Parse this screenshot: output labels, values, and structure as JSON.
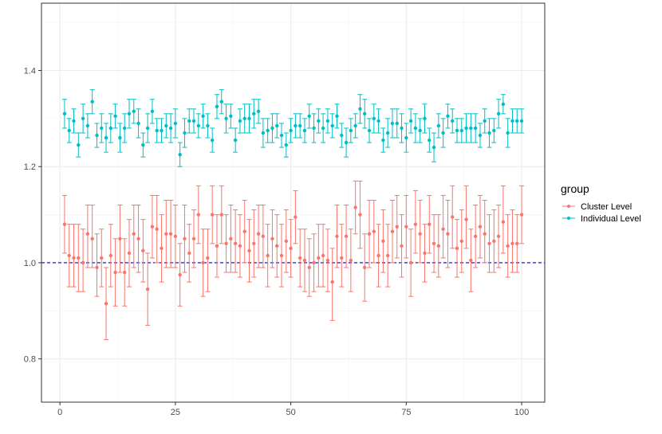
{
  "chart_data": {
    "type": "scatter",
    "title": "",
    "xlabel": "",
    "ylabel": "",
    "xlim": [
      -4.0,
      105.0
    ],
    "ylim": [
      0.71,
      1.54
    ],
    "x_ticks": [
      0,
      25,
      50,
      75,
      100
    ],
    "y_ticks": [
      0.8,
      1.0,
      1.2,
      1.4
    ],
    "x_tick_labels": [
      "0",
      "25",
      "50",
      "75",
      "100"
    ],
    "y_tick_labels": [
      "0.8",
      "1.0",
      "1.2",
      "1.4"
    ],
    "grid": true,
    "reference_line": {
      "y": 1.0,
      "style": "dashed",
      "color": "#0000cd"
    },
    "legend": {
      "title": "group",
      "placement": "right"
    },
    "series": [
      {
        "name": "Cluster Level",
        "color": "#f8766d",
        "x": [
          1,
          2,
          3,
          4,
          5,
          6,
          7,
          8,
          9,
          10,
          11,
          12,
          13,
          14,
          15,
          16,
          17,
          18,
          19,
          20,
          21,
          22,
          23,
          24,
          25,
          26,
          27,
          28,
          29,
          30,
          31,
          32,
          33,
          34,
          35,
          36,
          37,
          38,
          39,
          40,
          41,
          42,
          43,
          44,
          45,
          46,
          47,
          48,
          49,
          50,
          51,
          52,
          53,
          54,
          55,
          56,
          57,
          58,
          59,
          60,
          61,
          62,
          63,
          64,
          65,
          66,
          67,
          68,
          69,
          70,
          71,
          72,
          73,
          74,
          75,
          76,
          77,
          78,
          79,
          80,
          81,
          82,
          83,
          84,
          85,
          86,
          87,
          88,
          89,
          90,
          91,
          92,
          93,
          94,
          95,
          96,
          97,
          98,
          99,
          100
        ],
        "y": [
          1.08,
          1.015,
          1.01,
          1.01,
          1.0,
          1.06,
          1.05,
          0.99,
          1.01,
          0.915,
          1.015,
          0.98,
          1.05,
          0.98,
          1.02,
          1.06,
          1.05,
          1.025,
          0.945,
          1.075,
          1.07,
          1.03,
          1.06,
          1.06,
          1.055,
          0.975,
          1.05,
          1.02,
          1.05,
          1.1,
          1.0,
          1.01,
          1.1,
          1.035,
          1.1,
          1.04,
          1.05,
          1.04,
          1.035,
          1.065,
          1.025,
          1.04,
          1.06,
          1.055,
          1.015,
          1.05,
          1.035,
          1.015,
          1.045,
          1.03,
          1.095,
          1.01,
          1.005,
          0.99,
          1.0,
          1.01,
          1.015,
          1.005,
          0.96,
          1.055,
          1.01,
          1.055,
          1.005,
          1.115,
          1.1,
          0.99,
          1.06,
          1.065,
          1.015,
          1.045,
          1.015,
          1.065,
          1.075,
          1.035,
          1.075,
          1.0,
          1.08,
          1.06,
          1.02,
          1.08,
          1.04,
          1.035,
          1.07,
          1.06,
          1.095,
          1.03,
          1.045,
          1.09,
          1.005,
          1.055,
          1.075,
          1.06,
          1.04,
          1.045,
          1.055,
          1.085,
          1.035,
          1.04,
          1.04,
          1.1
        ],
        "ymin": [
          1.02,
          0.95,
          0.95,
          0.94,
          0.94,
          0.99,
          0.99,
          0.93,
          0.95,
          0.84,
          0.95,
          0.91,
          0.98,
          0.91,
          0.95,
          0.99,
          0.98,
          0.96,
          0.87,
          1.01,
          1.0,
          0.96,
          0.99,
          0.99,
          0.99,
          0.91,
          0.98,
          0.96,
          0.99,
          1.04,
          0.93,
          0.94,
          1.04,
          0.97,
          1.04,
          0.98,
          0.98,
          0.98,
          0.97,
          1.0,
          0.96,
          0.97,
          0.99,
          0.99,
          0.95,
          0.99,
          0.97,
          0.95,
          0.98,
          0.97,
          1.04,
          0.95,
          0.94,
          0.93,
          0.94,
          0.95,
          0.95,
          0.94,
          0.88,
          0.99,
          0.95,
          0.99,
          0.94,
          1.06,
          1.03,
          0.92,
          0.99,
          1.0,
          0.95,
          0.98,
          0.95,
          1.0,
          1.01,
          0.97,
          1.01,
          0.93,
          1.02,
          1.0,
          0.96,
          1.02,
          0.98,
          0.97,
          1.01,
          0.99,
          1.03,
          0.97,
          0.98,
          1.03,
          0.94,
          0.99,
          1.01,
          1.0,
          0.98,
          0.98,
          0.99,
          1.02,
          0.97,
          0.98,
          0.98,
          1.04
        ],
        "ymax": [
          1.14,
          1.08,
          1.08,
          1.08,
          1.07,
          1.12,
          1.12,
          1.06,
          1.07,
          0.99,
          1.08,
          1.05,
          1.12,
          1.05,
          1.09,
          1.12,
          1.12,
          1.09,
          1.02,
          1.14,
          1.14,
          1.1,
          1.13,
          1.13,
          1.12,
          1.04,
          1.12,
          1.08,
          1.11,
          1.16,
          1.07,
          1.07,
          1.16,
          1.1,
          1.16,
          1.1,
          1.12,
          1.11,
          1.1,
          1.13,
          1.09,
          1.11,
          1.12,
          1.12,
          1.08,
          1.11,
          1.1,
          1.08,
          1.11,
          1.09,
          1.15,
          1.07,
          1.07,
          1.05,
          1.06,
          1.08,
          1.08,
          1.07,
          1.03,
          1.12,
          1.08,
          1.12,
          1.07,
          1.17,
          1.17,
          1.06,
          1.13,
          1.13,
          1.08,
          1.11,
          1.08,
          1.13,
          1.14,
          1.1,
          1.14,
          1.07,
          1.15,
          1.13,
          1.08,
          1.14,
          1.1,
          1.1,
          1.14,
          1.13,
          1.16,
          1.09,
          1.11,
          1.16,
          1.07,
          1.12,
          1.14,
          1.13,
          1.1,
          1.11,
          1.12,
          1.16,
          1.1,
          1.11,
          1.1,
          1.16
        ]
      },
      {
        "name": "Individual Level",
        "color": "#00bfc4",
        "x": [
          1,
          2,
          3,
          4,
          5,
          6,
          7,
          8,
          9,
          10,
          11,
          12,
          13,
          14,
          15,
          16,
          17,
          18,
          19,
          20,
          21,
          22,
          23,
          24,
          25,
          26,
          27,
          28,
          29,
          30,
          31,
          32,
          33,
          34,
          35,
          36,
          37,
          38,
          39,
          40,
          41,
          42,
          43,
          44,
          45,
          46,
          47,
          48,
          49,
          50,
          51,
          52,
          53,
          54,
          55,
          56,
          57,
          58,
          59,
          60,
          61,
          62,
          63,
          64,
          65,
          66,
          67,
          68,
          69,
          70,
          71,
          72,
          73,
          74,
          75,
          76,
          77,
          78,
          79,
          80,
          81,
          82,
          83,
          84,
          85,
          86,
          87,
          88,
          89,
          90,
          91,
          92,
          93,
          94,
          95,
          96,
          97,
          98,
          99,
          100
        ],
        "y": [
          1.31,
          1.275,
          1.295,
          1.245,
          1.3,
          1.285,
          1.335,
          1.265,
          1.28,
          1.26,
          1.28,
          1.305,
          1.26,
          1.28,
          1.31,
          1.315,
          1.29,
          1.245,
          1.28,
          1.315,
          1.275,
          1.275,
          1.285,
          1.28,
          1.29,
          1.225,
          1.27,
          1.295,
          1.295,
          1.285,
          1.305,
          1.285,
          1.255,
          1.325,
          1.335,
          1.3,
          1.305,
          1.255,
          1.295,
          1.3,
          1.3,
          1.31,
          1.315,
          1.27,
          1.275,
          1.28,
          1.285,
          1.265,
          1.245,
          1.275,
          1.285,
          1.285,
          1.275,
          1.305,
          1.28,
          1.295,
          1.28,
          1.295,
          1.285,
          1.305,
          1.265,
          1.25,
          1.275,
          1.285,
          1.32,
          1.31,
          1.275,
          1.3,
          1.295,
          1.255,
          1.27,
          1.29,
          1.29,
          1.28,
          1.26,
          1.295,
          1.28,
          1.275,
          1.3,
          1.255,
          1.24,
          1.285,
          1.27,
          1.305,
          1.295,
          1.275,
          1.275,
          1.28,
          1.28,
          1.28,
          1.265,
          1.295,
          1.27,
          1.275,
          1.31,
          1.33,
          1.27,
          1.295,
          1.295,
          1.295
        ],
        "ymin": [
          1.28,
          1.25,
          1.27,
          1.22,
          1.27,
          1.26,
          1.31,
          1.24,
          1.25,
          1.23,
          1.25,
          1.28,
          1.23,
          1.25,
          1.28,
          1.29,
          1.26,
          1.22,
          1.25,
          1.29,
          1.25,
          1.25,
          1.26,
          1.25,
          1.26,
          1.2,
          1.24,
          1.27,
          1.27,
          1.26,
          1.28,
          1.26,
          1.23,
          1.3,
          1.31,
          1.27,
          1.28,
          1.23,
          1.27,
          1.27,
          1.27,
          1.28,
          1.29,
          1.24,
          1.25,
          1.25,
          1.26,
          1.24,
          1.22,
          1.25,
          1.26,
          1.26,
          1.25,
          1.28,
          1.25,
          1.27,
          1.25,
          1.27,
          1.26,
          1.28,
          1.24,
          1.22,
          1.25,
          1.26,
          1.29,
          1.28,
          1.25,
          1.27,
          1.27,
          1.23,
          1.24,
          1.26,
          1.26,
          1.25,
          1.23,
          1.27,
          1.25,
          1.25,
          1.27,
          1.23,
          1.21,
          1.26,
          1.24,
          1.28,
          1.27,
          1.25,
          1.25,
          1.25,
          1.25,
          1.25,
          1.24,
          1.27,
          1.24,
          1.25,
          1.28,
          1.31,
          1.24,
          1.27,
          1.27,
          1.27
        ],
        "ymax": [
          1.34,
          1.3,
          1.32,
          1.27,
          1.33,
          1.31,
          1.36,
          1.29,
          1.31,
          1.29,
          1.31,
          1.33,
          1.29,
          1.31,
          1.34,
          1.34,
          1.32,
          1.27,
          1.31,
          1.34,
          1.3,
          1.3,
          1.31,
          1.31,
          1.32,
          1.25,
          1.3,
          1.32,
          1.32,
          1.31,
          1.33,
          1.31,
          1.28,
          1.35,
          1.36,
          1.33,
          1.33,
          1.28,
          1.32,
          1.33,
          1.33,
          1.34,
          1.34,
          1.3,
          1.3,
          1.31,
          1.31,
          1.29,
          1.27,
          1.3,
          1.31,
          1.31,
          1.3,
          1.33,
          1.31,
          1.32,
          1.31,
          1.32,
          1.31,
          1.33,
          1.29,
          1.28,
          1.3,
          1.31,
          1.35,
          1.34,
          1.3,
          1.33,
          1.32,
          1.28,
          1.3,
          1.32,
          1.32,
          1.31,
          1.29,
          1.32,
          1.31,
          1.3,
          1.33,
          1.28,
          1.27,
          1.31,
          1.3,
          1.33,
          1.32,
          1.3,
          1.3,
          1.31,
          1.31,
          1.31,
          1.29,
          1.32,
          1.3,
          1.3,
          1.34,
          1.35,
          1.3,
          1.32,
          1.32,
          1.32
        ]
      }
    ]
  }
}
